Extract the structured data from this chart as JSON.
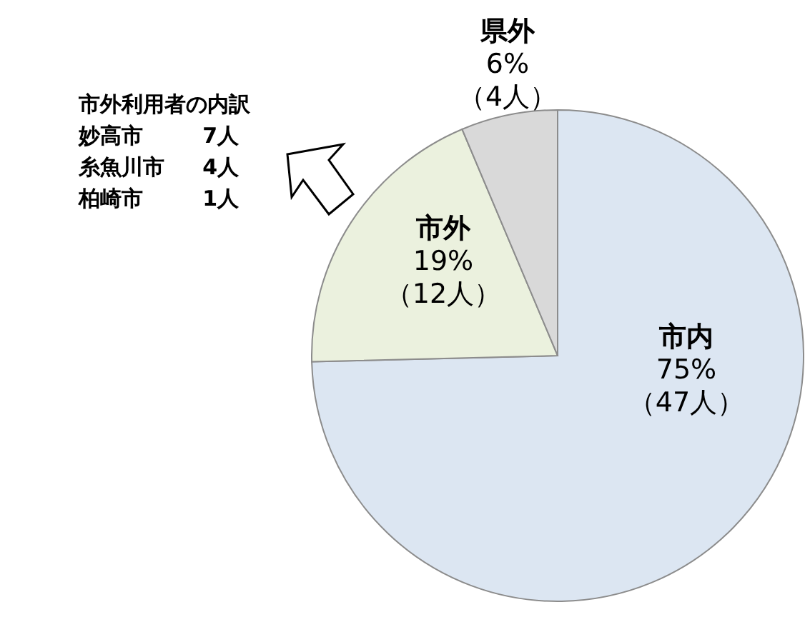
{
  "chart_data": {
    "type": "pie",
    "categories": [
      "市内",
      "市外",
      "県外"
    ],
    "values": [
      47,
      12,
      4
    ],
    "value_labels": [
      "75%\n（47人）",
      "19%\n（12人）",
      "6%\n（4人）"
    ],
    "colors": [
      "#dce6f2",
      "#ebf1de",
      "#d9d9d9"
    ],
    "annotations": [
      "市外利用者の内訳",
      "妙高市 7人",
      "糸魚川市 4人",
      "柏崎市 1人"
    ],
    "legend": false
  }
}
